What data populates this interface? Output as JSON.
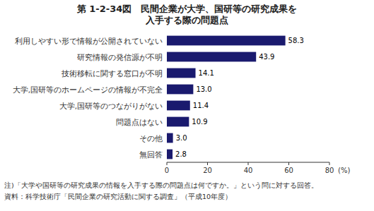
{
  "chart_data": {
    "type": "bar",
    "orientation": "horizontal",
    "title": [
      "第 1-2-34図　民間企業が大学、国研等の研究成果を",
      "入手する際の問題点"
    ],
    "categories": [
      "利用しやすい形で情報が公開されていない",
      "研究情報の発信源が不明",
      "技術移転に関する窓口が不明",
      "大学,国研等のホームページの情報が不完全",
      "大学,国研等のつながりがない",
      "問題点はない",
      "その他",
      "無回答"
    ],
    "values": [
      58.3,
      43.9,
      14.1,
      13.0,
      11.4,
      10.9,
      3.0,
      2.8
    ],
    "value_labels": [
      "58.3",
      "43.9",
      "14.1",
      "13.0",
      "11.4",
      "10.9",
      "3.0",
      "2.8"
    ],
    "data_labels": true,
    "color": "#1a1a6e",
    "xlim": [
      0,
      80
    ],
    "xticks": [
      0,
      20,
      40,
      60,
      80
    ],
    "xlabel": "(%)",
    "grid": false,
    "annotations": [
      "注)「大学や国研等の研究成果の情報を入手する際の問題点は何ですか。」という問に対する回答。",
      "資料：科学技術庁「民間企業の研究活動に関する調査」（平成10年度）"
    ]
  }
}
